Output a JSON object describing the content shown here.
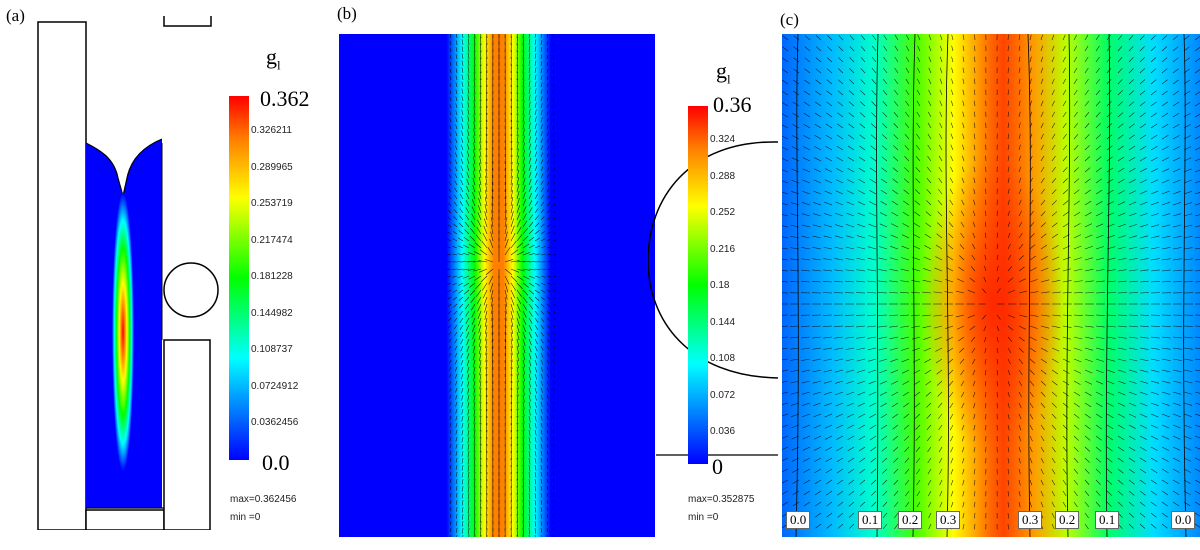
{
  "panels": {
    "a": {
      "label": "(a)",
      "legend_title": "g",
      "legend_sub": "l",
      "legend_max": "0.362",
      "legend_min": "0.0",
      "ticks": [
        "0.326211",
        "0.289965",
        "0.253719",
        "0.217474",
        "0.181228",
        "0.144982",
        "0.108737",
        "0.0724912",
        "0.0362456"
      ],
      "stat_max": "max=0.362456",
      "stat_min": "min =0"
    },
    "b": {
      "label": "(b)",
      "legend_title": "g",
      "legend_sub": "l",
      "legend_max": "0.36",
      "legend_min": "0",
      "ticks": [
        "0.324",
        "0.288",
        "0.252",
        "0.216",
        "0.18",
        "0.144",
        "0.108",
        "0.072",
        "0.036"
      ],
      "stat_max": "max=0.352875",
      "stat_min": "min =0"
    },
    "c": {
      "label": "(c)",
      "contour_labels": [
        "0.0",
        "0.1",
        "0.2",
        "0.3",
        "0.3",
        "0.2",
        "0.1",
        "0.0"
      ]
    }
  },
  "colors": {
    "blue": "#0000ff",
    "cyan": "#00ffff",
    "green": "#00ff00",
    "yellow": "#ffff00",
    "red": "#ff0000"
  }
}
